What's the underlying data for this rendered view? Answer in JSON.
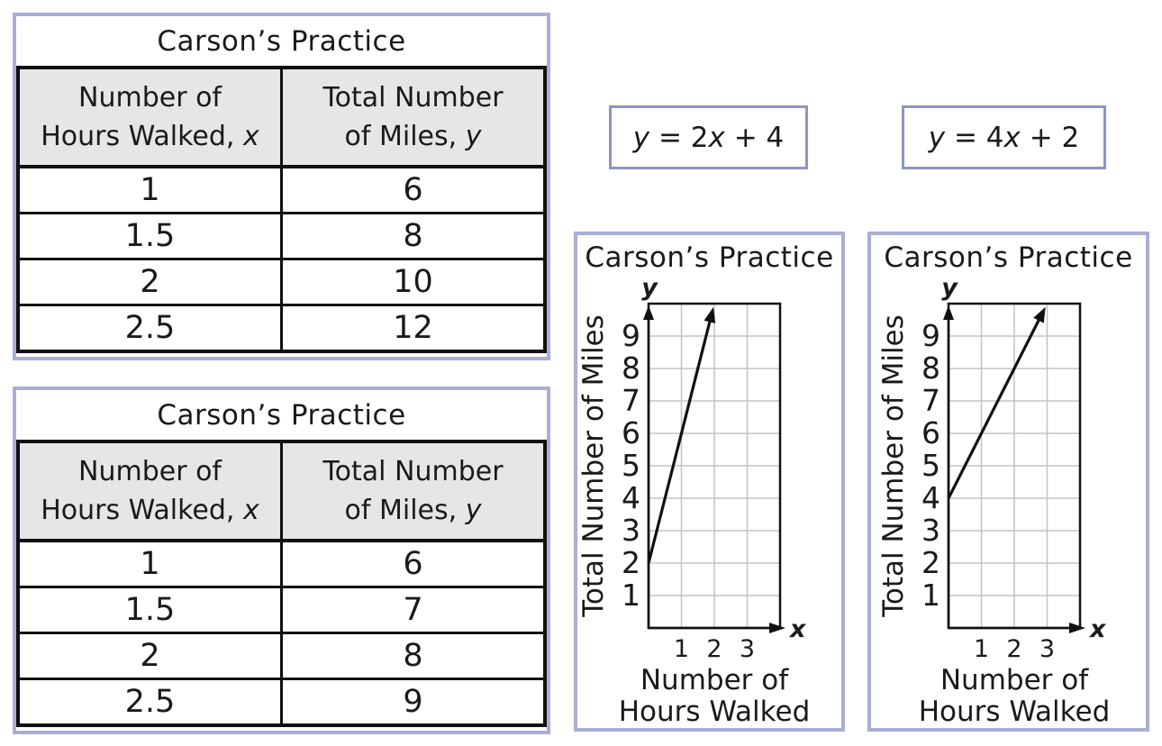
{
  "colors": {
    "panel_border": "#a9aed6",
    "equation_border": "#8e95c4",
    "table_line": "#111111",
    "header_bg": "#e6e6e6",
    "grid_line": "#c3c3c3",
    "ink": "#1a1a1a",
    "background": "#ffffff"
  },
  "tables": [
    {
      "title": "Carson’s Practice",
      "columns": [
        {
          "line1": "Number of",
          "line2": "Hours Walked, ",
          "variable": "x"
        },
        {
          "line1": "Total Number",
          "line2": "of Miles, ",
          "variable": "y"
        }
      ],
      "rows": [
        [
          "1",
          "6"
        ],
        [
          "1.5",
          "8"
        ],
        [
          "2",
          "10"
        ],
        [
          "2.5",
          "12"
        ]
      ]
    },
    {
      "title": "Carson’s Practice",
      "columns": [
        {
          "line1": "Number of",
          "line2": "Hours Walked, ",
          "variable": "x"
        },
        {
          "line1": "Total Number",
          "line2": "of Miles, ",
          "variable": "y"
        }
      ],
      "rows": [
        [
          "1",
          "6"
        ],
        [
          "1.5",
          "7"
        ],
        [
          "2",
          "8"
        ],
        [
          "2.5",
          "9"
        ]
      ]
    }
  ],
  "equations": [
    {
      "italic1": "y",
      "text1": " = 2",
      "italic2": "x",
      "text2": " + 4"
    },
    {
      "italic1": "y",
      "text1": " = 4",
      "italic2": "x",
      "text2": " + 2"
    }
  ],
  "chart_data": [
    {
      "type": "line",
      "title": "Carson’s Practice",
      "xlabel": "Number of Hours Walked",
      "xlabel_lines": [
        "Number of",
        "Hours Walked"
      ],
      "ylabel": "Total Number of Miles",
      "x_axis_letter": "x",
      "y_axis_letter": "y",
      "xlim": [
        0,
        4
      ],
      "ylim": [
        0,
        10
      ],
      "xticks": [
        1,
        2,
        3
      ],
      "yticks": [
        1,
        2,
        3,
        4,
        5,
        6,
        7,
        8,
        9
      ],
      "grid": true,
      "legend": "none",
      "series": [
        {
          "name": "y = 4x + 2",
          "slope": 4,
          "y_intercept": 2,
          "x": [
            0,
            2
          ],
          "y": [
            2,
            10
          ],
          "arrow_end": true
        }
      ]
    },
    {
      "type": "line",
      "title": "Carson’s Practice",
      "xlabel": "Number of Hours Walked",
      "xlabel_lines": [
        "Number of",
        "Hours Walked"
      ],
      "ylabel": "Total Number of Miles",
      "x_axis_letter": "x",
      "y_axis_letter": "y",
      "xlim": [
        0,
        4
      ],
      "ylim": [
        0,
        10
      ],
      "xticks": [
        1,
        2,
        3
      ],
      "yticks": [
        1,
        2,
        3,
        4,
        5,
        6,
        7,
        8,
        9
      ],
      "grid": true,
      "legend": "none",
      "series": [
        {
          "name": "y = 2x + 4",
          "slope": 2,
          "y_intercept": 4,
          "x": [
            0,
            3
          ],
          "y": [
            4,
            10
          ],
          "arrow_end": true
        }
      ]
    }
  ]
}
